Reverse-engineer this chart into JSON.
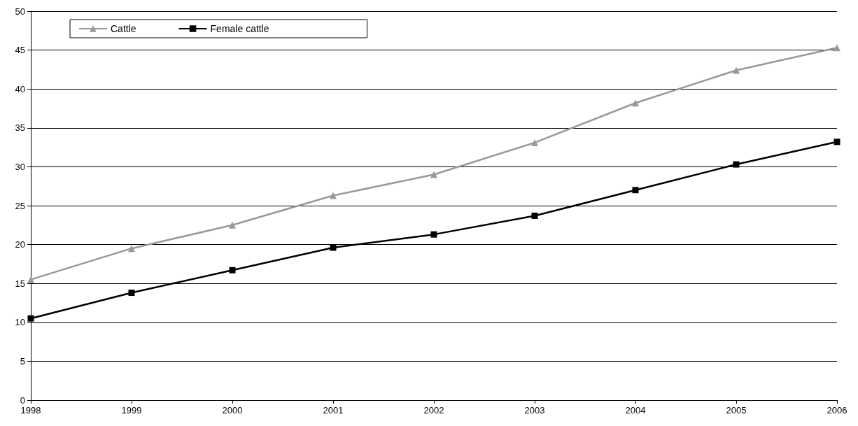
{
  "chart_data": {
    "type": "line",
    "categories": [
      "1998",
      "1999",
      "2000",
      "2001",
      "2002",
      "2003",
      "2004",
      "2005",
      "2006"
    ],
    "series": [
      {
        "name": "Cattle",
        "color": "#999999",
        "marker": "triangle",
        "values": [
          15.5,
          19.5,
          22.5,
          26.3,
          29.0,
          33.1,
          38.2,
          42.4,
          45.3
        ]
      },
      {
        "name": "Female cattle",
        "color": "#000000",
        "marker": "square",
        "values": [
          10.5,
          13.8,
          16.7,
          19.6,
          21.3,
          23.7,
          27.0,
          30.3,
          33.2
        ]
      }
    ],
    "ylim": [
      0,
      50
    ],
    "yticks": [
      0,
      5,
      10,
      15,
      20,
      25,
      30,
      35,
      40,
      45,
      50
    ],
    "grid": "y",
    "legend": "top left",
    "line_style": "solid"
  }
}
